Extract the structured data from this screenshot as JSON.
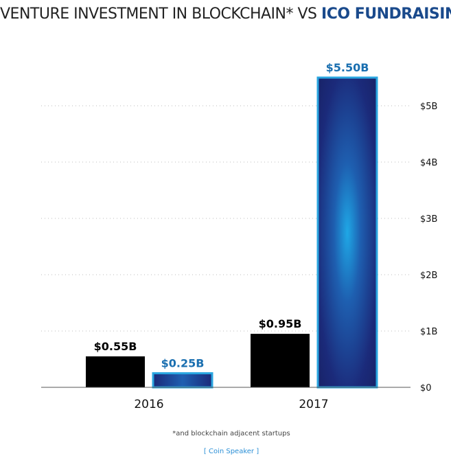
{
  "chart_data": {
    "type": "bar",
    "title": "VENTURE INVESTMENT IN BLOCKCHAIN* VS",
    "title_highlight": "ICO FUNDRAISING",
    "categories": [
      "2016",
      "2017"
    ],
    "series": [
      {
        "values": [
          0.55,
          0.95
        ],
        "labels": [
          "$0.55B",
          "$0.95B"
        ],
        "color": "#000000"
      },
      {
        "values": [
          0.25,
          5.5
        ],
        "labels": [
          "$0.25B",
          "$5.50B"
        ],
        "color": "#1b2a7a",
        "accent": "#2aa6e0",
        "label_color": "#1a6fb0"
      }
    ],
    "yticks": [
      {
        "value": 0,
        "label": "$0"
      },
      {
        "value": 1,
        "label": "$1B"
      },
      {
        "value": 2,
        "label": "$2B"
      },
      {
        "value": 3,
        "label": "$3B"
      },
      {
        "value": 4,
        "label": "$4B"
      },
      {
        "value": 5,
        "label": "$5B"
      }
    ],
    "ylim": [
      0,
      5.5
    ],
    "grid": true,
    "y_axis_side": "right",
    "footnote": "*and blockchain adjacent startups",
    "source": "[ Coin Speaker ]"
  }
}
